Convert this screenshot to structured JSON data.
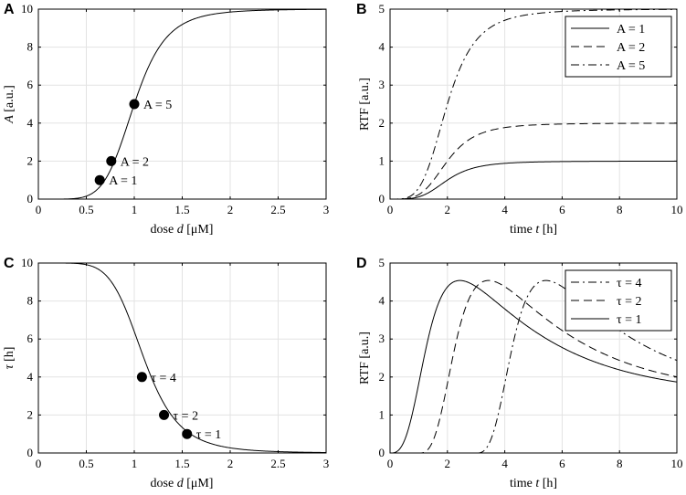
{
  "chart_data": [
    {
      "panel": "A",
      "type": "line",
      "title": "",
      "xlabel": "dose",
      "xlabel_var": "d",
      "xlabel_unit": "[μM]",
      "ylabel_var": "A",
      "ylabel_unit": "[a.u.]",
      "xlim": [
        0,
        3
      ],
      "ylim": [
        0,
        10
      ],
      "xticks": [
        0,
        0.5,
        1,
        1.5,
        2,
        2.5,
        3
      ],
      "yticks": [
        0,
        2,
        4,
        6,
        8,
        10
      ],
      "grid": true,
      "curve": {
        "kind": "hill",
        "max": 10,
        "k": 1,
        "n": 6
      },
      "points": [
        {
          "x": 0.64,
          "y": 1,
          "label": "A = 1"
        },
        {
          "x": 0.76,
          "y": 2,
          "label": "A = 2"
        },
        {
          "x": 1.0,
          "y": 5,
          "label": "A = 5"
        }
      ]
    },
    {
      "panel": "B",
      "type": "line",
      "xlabel": "time",
      "xlabel_var": "t",
      "xlabel_unit": "[h]",
      "ylabel": "RTF",
      "ylabel_unit": "[a.u.]",
      "xlim": [
        0,
        10
      ],
      "ylim": [
        0,
        5
      ],
      "xticks": [
        0,
        2,
        4,
        6,
        8,
        10
      ],
      "yticks": [
        0,
        1,
        2,
        3,
        4,
        5
      ],
      "grid": true,
      "legend_position": "top-right",
      "series": [
        {
          "name": "A = 1",
          "amp": 1,
          "style": "solid"
        },
        {
          "name": "A = 2",
          "amp": 2,
          "style": "dashed"
        },
        {
          "name": "A = 5",
          "amp": 5,
          "style": "dashdot"
        }
      ]
    },
    {
      "panel": "C",
      "type": "line",
      "xlabel": "dose",
      "xlabel_var": "d",
      "xlabel_unit": "[μM]",
      "ylabel_var": "τ",
      "ylabel_unit": "[h]",
      "xlim": [
        0,
        3
      ],
      "ylim": [
        0,
        10
      ],
      "xticks": [
        0,
        0.5,
        1,
        1.5,
        2,
        2.5,
        3
      ],
      "yticks": [
        0,
        2,
        4,
        6,
        8,
        10
      ],
      "grid": true,
      "curve": {
        "kind": "hill-decreasing",
        "max": 10,
        "k": 1.1,
        "n": 6
      },
      "points": [
        {
          "x": 1.08,
          "y": 4,
          "label": "τ = 4"
        },
        {
          "x": 1.31,
          "y": 2,
          "label": "τ = 2"
        },
        {
          "x": 1.55,
          "y": 1,
          "label": "τ = 1"
        }
      ]
    },
    {
      "panel": "D",
      "type": "line",
      "xlabel": "time",
      "xlabel_var": "t",
      "xlabel_unit": "[h]",
      "ylabel": "RTF",
      "ylabel_unit": "[a.u.]",
      "xlim": [
        0,
        10
      ],
      "ylim": [
        0,
        5
      ],
      "xticks": [
        0,
        2,
        4,
        6,
        8,
        10
      ],
      "yticks": [
        0,
        1,
        2,
        3,
        4,
        5
      ],
      "grid": true,
      "legend_position": "top-right",
      "series": [
        {
          "name": "τ = 4",
          "delay": 3.0,
          "style": "dashdot"
        },
        {
          "name": "τ = 2",
          "delay": 1.0,
          "style": "dashed"
        },
        {
          "name": "τ = 1",
          "delay": 0.0,
          "style": "solid"
        }
      ]
    }
  ]
}
